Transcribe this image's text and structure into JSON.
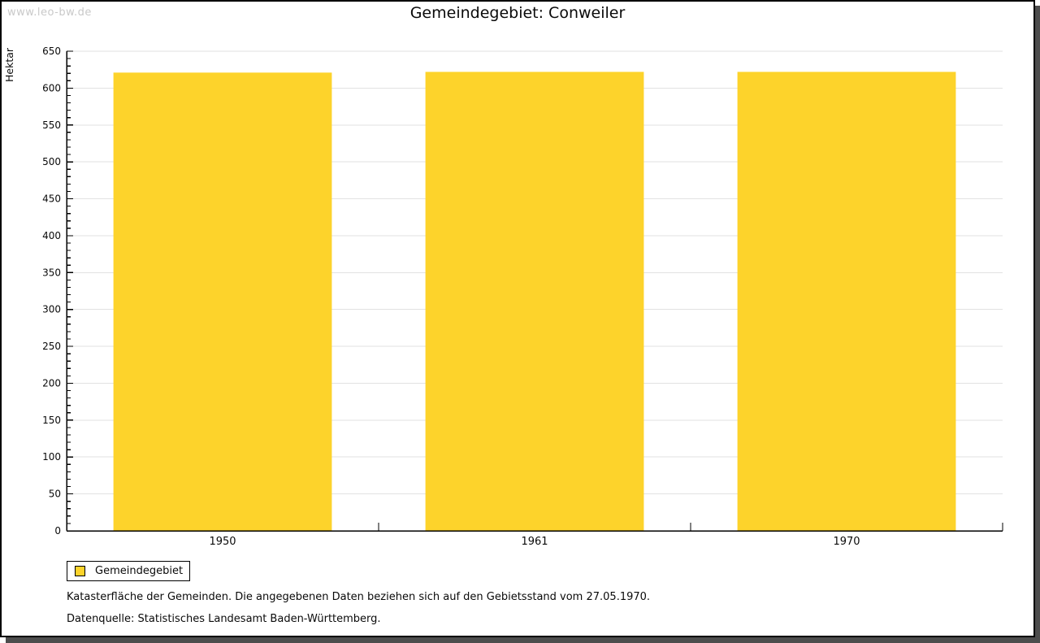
{
  "watermark": "www.leo-bw.de",
  "legend": {
    "label": "Gemeindegebiet"
  },
  "footnotes": {
    "line1": "Katasterfläche der Gemeinden. Die angegebenen Daten beziehen sich auf den Gebietsstand vom 27.05.1970.",
    "line2": "Datenquelle: Statistisches Landesamt Baden-Württemberg."
  },
  "colors": {
    "bar": "#fdd32b",
    "grid": "#e2e2e2",
    "axis": "#000000",
    "text": "#0a0a0a",
    "watermark": "#c9c9c9",
    "frame_shadow": "#4d4d4d"
  },
  "chart_data": {
    "type": "bar",
    "title": "Gemeindegebiet: Conweiler",
    "categories": [
      "1950",
      "1961",
      "1970"
    ],
    "values": [
      621,
      622,
      622
    ],
    "series_name": "Gemeindegebiet",
    "xlabel": "",
    "ylabel": "Hektar",
    "ylim": [
      0,
      650
    ],
    "ytick_step": 50,
    "minor_tick_step": 10,
    "grid": "horizontal-major",
    "bar_width_frac": 0.7,
    "legend_position": "bottom-left"
  }
}
